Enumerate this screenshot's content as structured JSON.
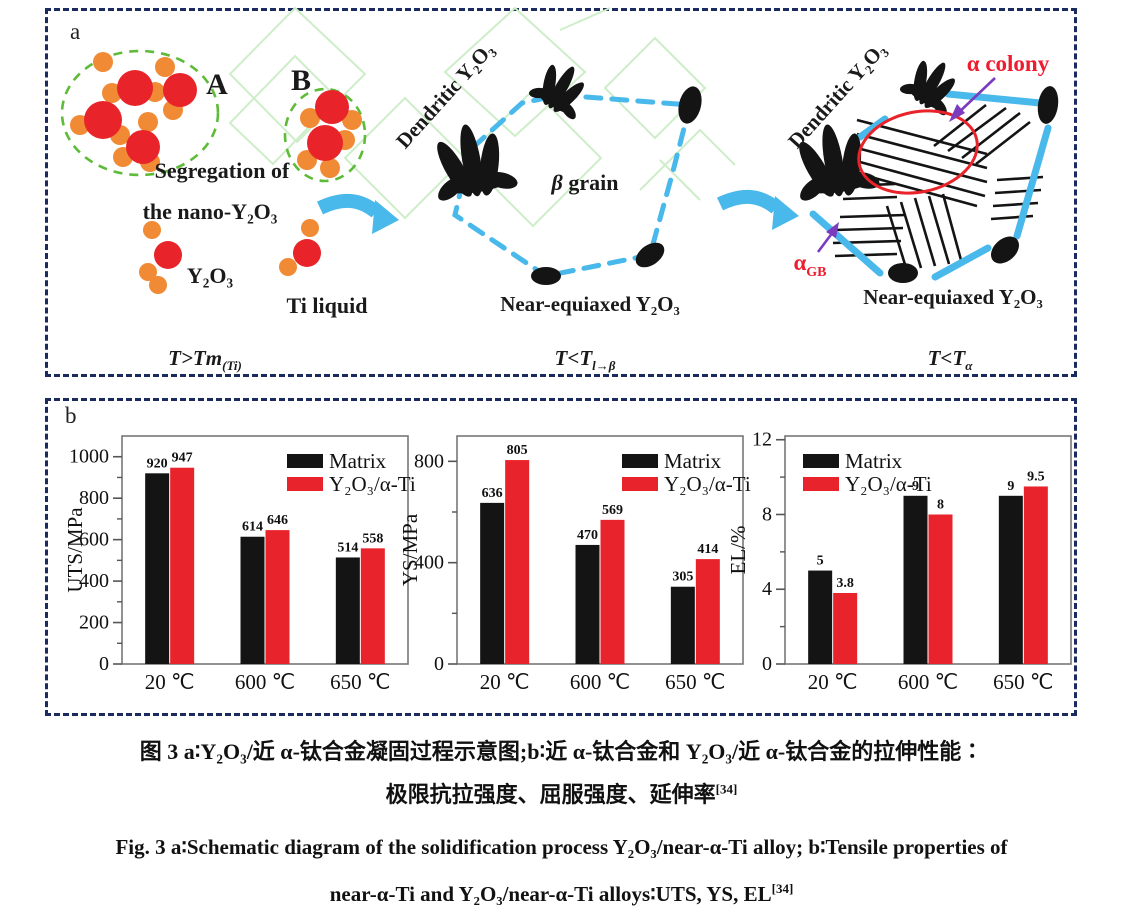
{
  "figure": {
    "panel_a_label": "a",
    "panel_b_label": "b"
  },
  "colors": {
    "red_particle": "#e8242a",
    "orange_particle": "#f08a35",
    "green_dashed": "#5dbb38",
    "light_green_background": "#cdeec8",
    "blue_arrow": "#49b8ea",
    "navy_border": "#1c2b5f",
    "purple_arrow": "#7a3bbf",
    "red_label": "#ee1c2e",
    "black_bar": "#141414",
    "red_bar": "#e8232b"
  },
  "schematic": {
    "stage1": {
      "cluster_a_label": "A",
      "cluster_b_label": "B",
      "segregation_line1": "Segregation of",
      "segregation_line2": "the  nano-Y₂O₃",
      "y2o3_label": "Y₂O₃",
      "ti_liquid_label": "Ti liquid",
      "temp_main": "T>Tm",
      "temp_sub": "(Ti)"
    },
    "stage2": {
      "dendritic_label": "Dendritic Y₂O₃",
      "beta_symbol": "β",
      "grain_word": " grain",
      "near_equiaxed_label": "Near-equiaxed Y₂O₃",
      "temp_main": "T<T",
      "temp_sub": "l→β"
    },
    "stage3": {
      "dendritic_label": "Dendritic Y₂O₃",
      "alpha_colony_label": "α colony",
      "alpha_gb_main": "α",
      "alpha_gb_sub": "GB",
      "near_equiaxed_label": "Near-equiaxed Y₂O₃",
      "temp_main": "T<T",
      "temp_sub": "α"
    }
  },
  "chart_data": [
    {
      "type": "bar",
      "ylabel": "UTS/MPa",
      "categories": [
        "20 ℃",
        "600 ℃",
        "650 ℃"
      ],
      "series": [
        {
          "name": "Matrix",
          "color": "#141414",
          "values": [
            920,
            614,
            514
          ]
        },
        {
          "name": "Y₂O₃/α-Ti",
          "color": "#e8232b",
          "values": [
            947,
            646,
            558
          ]
        }
      ],
      "ylim": [
        0,
        1100
      ],
      "yticks": [
        0,
        200,
        400,
        600,
        800,
        1000
      ],
      "yminor": [
        100,
        300,
        500,
        700,
        900
      ],
      "legend_pos": "right"
    },
    {
      "type": "bar",
      "ylabel": "YS/MPa",
      "categories": [
        "20 ℃",
        "600 ℃",
        "650 ℃"
      ],
      "series": [
        {
          "name": "Matrix",
          "color": "#141414",
          "values": [
            636,
            470,
            305
          ]
        },
        {
          "name": "Y₂O₃/α-Ti",
          "color": "#e8232b",
          "values": [
            805,
            569,
            414
          ]
        }
      ],
      "ylim": [
        0,
        900
      ],
      "yticks": [
        0,
        400,
        800
      ],
      "yminor": [
        200,
        600
      ],
      "legend_pos": "right"
    },
    {
      "type": "bar",
      "ylabel": "EL/%",
      "categories": [
        "20 ℃",
        "600 ℃",
        "650 ℃"
      ],
      "series": [
        {
          "name": "Matrix",
          "color": "#141414",
          "values": [
            5,
            9,
            9
          ]
        },
        {
          "name": "Y₂O₃/α-Ti",
          "color": "#e8232b",
          "values": [
            3.8,
            8,
            9.5
          ]
        }
      ],
      "ylim": [
        0,
        12.2
      ],
      "yticks": [
        0,
        4,
        8,
        12
      ],
      "yminor": [
        2,
        6,
        10
      ],
      "legend_pos": "left"
    }
  ],
  "caption": {
    "zh_line1": "图 3  a∶Y₂O₃/近 α-钛合金凝固过程示意图;b∶近 α-钛合金和 Y₂O₃/近 α-钛合金的拉伸性能∶",
    "zh_line2": "极限抗拉强度、屈服强度、延伸率",
    "zh_ref": "[34]",
    "en_line1": "Fig. 3  a∶Schematic diagram of the solidification process Y₂O₃/near-α-Ti alloy; b∶Tensile properties of",
    "en_line2": "near-α-Ti and Y₂O₃/near-α-Ti alloys∶UTS, YS, EL",
    "en_ref": "[34]"
  }
}
